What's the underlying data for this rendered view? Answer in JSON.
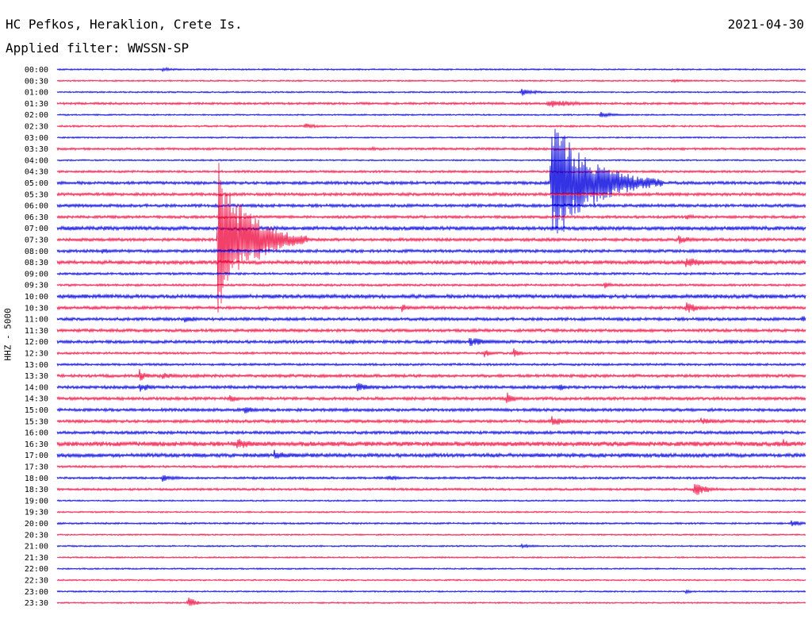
{
  "header": {
    "station": "HC Pefkos, Heraklion, Crete Is.",
    "date": "2021-04-30",
    "filter": "Applied filter: WWSSN-SP"
  },
  "chart_data": {
    "type": "line",
    "title": "HC Pefkos, Heraklion, Crete Is.",
    "ylabel": "HHZ - 5000",
    "colors": [
      "#0000dd",
      "#ee1144"
    ],
    "rows": [
      "00:00",
      "00:30",
      "01:00",
      "01:30",
      "02:00",
      "02:30",
      "03:00",
      "03:30",
      "04:00",
      "04:30",
      "05:00",
      "05:30",
      "06:00",
      "06:30",
      "07:00",
      "07:30",
      "08:00",
      "08:30",
      "09:00",
      "09:30",
      "10:00",
      "10:30",
      "11:00",
      "11:30",
      "12:00",
      "12:30",
      "13:00",
      "13:30",
      "14:00",
      "14:30",
      "15:00",
      "15:30",
      "16:00",
      "16:30",
      "17:00",
      "17:30",
      "18:00",
      "18:30",
      "19:00",
      "19:30",
      "20:00",
      "20:30",
      "21:00",
      "21:30",
      "22:00",
      "22:30",
      "23:00",
      "23:30"
    ],
    "noise": [
      1,
      1,
      1,
      1.5,
      1,
      1.2,
      1,
      1.5,
      1,
      1.5,
      2,
      2,
      2,
      1.8,
      2.5,
      2,
      2,
      2.5,
      1.5,
      1.5,
      2.5,
      2,
      2,
      2,
      2,
      1.5,
      1.5,
      2,
      2,
      2,
      2,
      2,
      2,
      3,
      2.5,
      1.5,
      1.5,
      1.5,
      1,
      1,
      1.2,
      1,
      1,
      1,
      1,
      1,
      1,
      1
    ],
    "events": [
      {
        "row": 0,
        "x": 0.14,
        "amp": 3,
        "dur": 0.02
      },
      {
        "row": 1,
        "x": 0.82,
        "amp": 2,
        "dur": 0.04
      },
      {
        "row": 2,
        "x": 0.62,
        "amp": 5,
        "dur": 0.02
      },
      {
        "row": 3,
        "x": 0.655,
        "amp": 6,
        "dur": 0.04
      },
      {
        "row": 4,
        "x": 0.725,
        "amp": 4,
        "dur": 0.02
      },
      {
        "row": 5,
        "x": 0.33,
        "amp": 4,
        "dur": 0.02
      },
      {
        "row": 7,
        "x": 0.42,
        "amp": 3,
        "dur": 0.01
      },
      {
        "row": 10,
        "x": 0.66,
        "amp": 90,
        "dur": 0.05
      },
      {
        "row": 13,
        "x": 0.84,
        "amp": 4,
        "dur": 0.02
      },
      {
        "row": 15,
        "x": 0.215,
        "amp": 100,
        "dur": 0.04
      },
      {
        "row": 15,
        "x": 0.83,
        "amp": 6,
        "dur": 0.02
      },
      {
        "row": 16,
        "x": 0.06,
        "amp": 4,
        "dur": 0.02
      },
      {
        "row": 17,
        "x": 0.84,
        "amp": 7,
        "dur": 0.03
      },
      {
        "row": 19,
        "x": 0.73,
        "amp": 6,
        "dur": 0.01
      },
      {
        "row": 21,
        "x": 0.46,
        "amp": 6,
        "dur": 0.01
      },
      {
        "row": 21,
        "x": 0.84,
        "amp": 8,
        "dur": 0.02
      },
      {
        "row": 22,
        "x": 0.17,
        "amp": 5,
        "dur": 0.02
      },
      {
        "row": 22,
        "x": 0.995,
        "amp": 6,
        "dur": 0.01
      },
      {
        "row": 24,
        "x": 0.55,
        "amp": 6,
        "dur": 0.03
      },
      {
        "row": 24,
        "x": 0.39,
        "amp": 5,
        "dur": 0.01
      },
      {
        "row": 25,
        "x": 0.61,
        "amp": 7,
        "dur": 0.01
      },
      {
        "row": 25,
        "x": 0.57,
        "amp": 6,
        "dur": 0.01
      },
      {
        "row": 27,
        "x": 0.11,
        "amp": 9,
        "dur": 0.01
      },
      {
        "row": 27,
        "x": 0.14,
        "amp": 5,
        "dur": 0.02
      },
      {
        "row": 28,
        "x": 0.11,
        "amp": 6,
        "dur": 0.02
      },
      {
        "row": 28,
        "x": 0.4,
        "amp": 6,
        "dur": 0.02
      },
      {
        "row": 28,
        "x": 0.67,
        "amp": 6,
        "dur": 0.01
      },
      {
        "row": 29,
        "x": 0.23,
        "amp": 8,
        "dur": 0.01
      },
      {
        "row": 29,
        "x": 0.6,
        "amp": 10,
        "dur": 0.01
      },
      {
        "row": 30,
        "x": 0.25,
        "amp": 5,
        "dur": 0.02
      },
      {
        "row": 31,
        "x": 0.66,
        "amp": 7,
        "dur": 0.02
      },
      {
        "row": 31,
        "x": 0.86,
        "amp": 5,
        "dur": 0.02
      },
      {
        "row": 33,
        "x": 0.24,
        "amp": 7,
        "dur": 0.03
      },
      {
        "row": 33,
        "x": 0.97,
        "amp": 7,
        "dur": 0.01
      },
      {
        "row": 34,
        "x": 0.29,
        "amp": 7,
        "dur": 0.02
      },
      {
        "row": 36,
        "x": 0.14,
        "amp": 5,
        "dur": 0.02
      },
      {
        "row": 36,
        "x": 0.44,
        "amp": 4,
        "dur": 0.02
      },
      {
        "row": 37,
        "x": 0.85,
        "amp": 10,
        "dur": 0.02
      },
      {
        "row": 40,
        "x": 0.98,
        "amp": 4,
        "dur": 0.02
      },
      {
        "row": 42,
        "x": 0.62,
        "amp": 3,
        "dur": 0.02
      },
      {
        "row": 46,
        "x": 0.84,
        "amp": 3,
        "dur": 0.01
      },
      {
        "row": 47,
        "x": 0.175,
        "amp": 9,
        "dur": 0.01
      }
    ]
  }
}
